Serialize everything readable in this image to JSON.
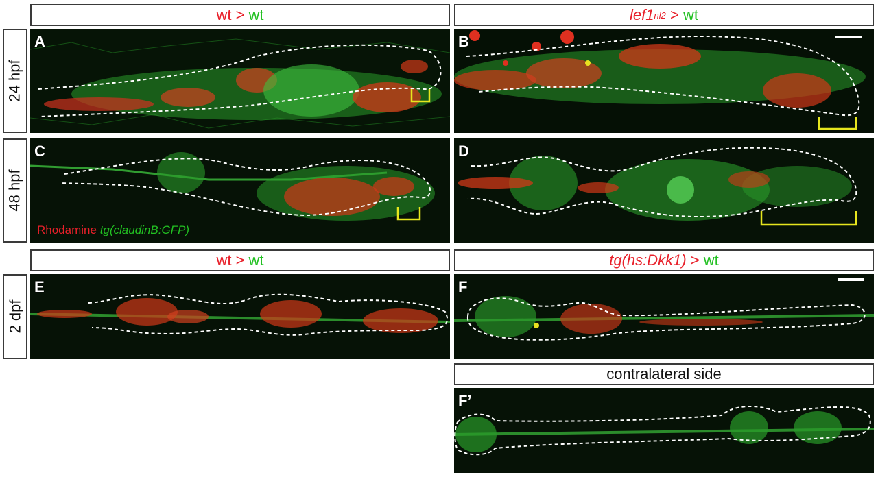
{
  "headers": {
    "top_left": {
      "a": "wt",
      "sep": " > ",
      "b": "wt"
    },
    "top_right": {
      "a": "lef1",
      "a_sup": "nl2",
      "sep": " > ",
      "b": "wt"
    },
    "mid_left": {
      "a": "wt",
      "sep": " > ",
      "b": "wt"
    },
    "mid_right": {
      "a": "tg(hs:Dkk1)",
      "sep": " > ",
      "b": "wt"
    },
    "bottom_right": {
      "text": "contralateral side"
    }
  },
  "row_labels": {
    "r1": "24 hpf",
    "r2": "48 hpf",
    "r3": "2 dpf"
  },
  "panels": {
    "A": "A",
    "B": "B",
    "C": "C",
    "D": "D",
    "E": "E",
    "F": "F",
    "Fp": "F’"
  },
  "legend": {
    "rhodamine": "Rhodamine",
    "gfp": "tg(claudinB:GFP)"
  },
  "colors": {
    "red": "#e8202a",
    "green": "#22c022",
    "bracket": "#e6e61e",
    "outline": "#ffffff"
  }
}
